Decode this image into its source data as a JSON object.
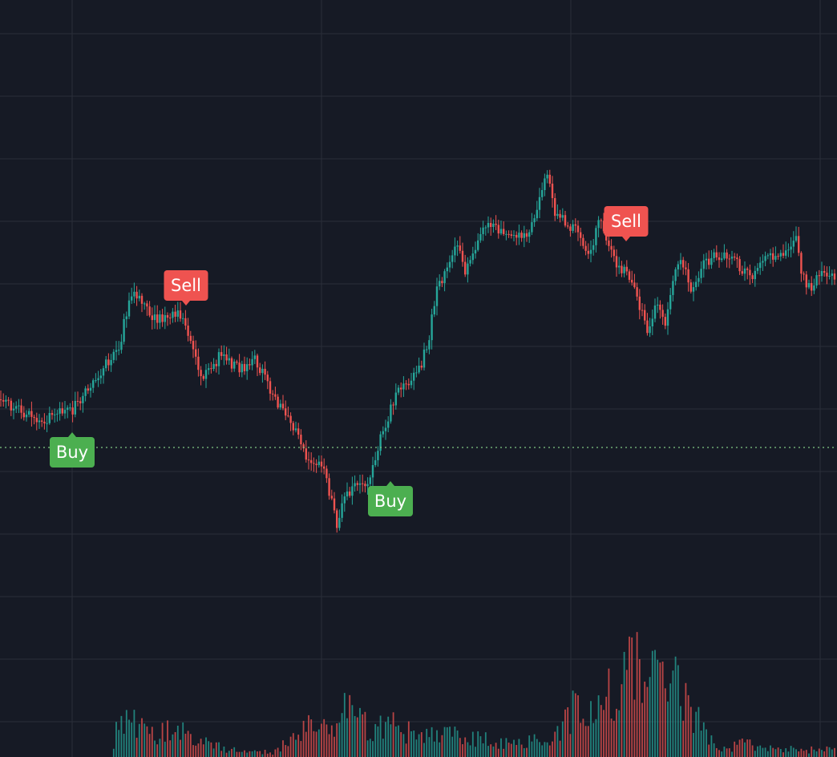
{
  "theme": {
    "background": "#161a25",
    "grid": "#2a2e39",
    "up": "#26a69a",
    "down": "#ef5350",
    "buy": "#4caf50",
    "sell": "#ef5350",
    "level_line": "#81c784",
    "signal_text": "#ffffff"
  },
  "chart_data": {
    "type": "candlestick",
    "grid": true,
    "price_axis_visible": false,
    "time_axis_visible": false,
    "ylim": [
      0,
      944
    ],
    "horizontal_level": 558,
    "signals": [
      {
        "label": "Buy",
        "side": "buy",
        "x": 90,
        "price": 514
      },
      {
        "label": "Sell",
        "side": "sell",
        "x": 232,
        "price": 398
      },
      {
        "label": "Buy",
        "side": "buy",
        "x": 487,
        "price": 575
      },
      {
        "label": "Sell",
        "side": "sell",
        "x": 781,
        "price": 318
      }
    ],
    "price_path": [
      [
        0,
        498
      ],
      [
        30,
        515
      ],
      [
        50,
        524
      ],
      [
        68,
        518
      ],
      [
        90,
        511
      ],
      [
        105,
        493
      ],
      [
        120,
        470
      ],
      [
        140,
        445
      ],
      [
        150,
        428
      ],
      [
        162,
        366
      ],
      [
        175,
        372
      ],
      [
        190,
        398
      ],
      [
        210,
        394
      ],
      [
        222,
        392
      ],
      [
        232,
        402
      ],
      [
        240,
        440
      ],
      [
        252,
        470
      ],
      [
        262,
        465
      ],
      [
        275,
        440
      ],
      [
        290,
        455
      ],
      [
        305,
        462
      ],
      [
        318,
        450
      ],
      [
        330,
        470
      ],
      [
        345,
        500
      ],
      [
        360,
        520
      ],
      [
        372,
        540
      ],
      [
        385,
        580
      ],
      [
        400,
        575
      ],
      [
        408,
        600
      ],
      [
        420,
        652
      ],
      [
        432,
        620
      ],
      [
        445,
        600
      ],
      [
        458,
        612
      ],
      [
        468,
        570
      ],
      [
        480,
        530
      ],
      [
        495,
        490
      ],
      [
        510,
        478
      ],
      [
        525,
        455
      ],
      [
        535,
        420
      ],
      [
        545,
        360
      ],
      [
        555,
        340
      ],
      [
        570,
        300
      ],
      [
        580,
        338
      ],
      [
        590,
        320
      ],
      [
        605,
        285
      ],
      [
        630,
        285
      ],
      [
        650,
        295
      ],
      [
        665,
        282
      ],
      [
        675,
        235
      ],
      [
        682,
        218
      ],
      [
        692,
        265
      ],
      [
        705,
        278
      ],
      [
        720,
        290
      ],
      [
        735,
        320
      ],
      [
        748,
        268
      ],
      [
        760,
        310
      ],
      [
        770,
        330
      ],
      [
        785,
        345
      ],
      [
        795,
        375
      ],
      [
        808,
        410
      ],
      [
        820,
        380
      ],
      [
        830,
        400
      ],
      [
        840,
        340
      ],
      [
        850,
        318
      ],
      [
        860,
        362
      ],
      [
        870,
        352
      ],
      [
        880,
        325
      ],
      [
        895,
        320
      ],
      [
        910,
        318
      ],
      [
        925,
        335
      ],
      [
        940,
        345
      ],
      [
        955,
        322
      ],
      [
        970,
        320
      ],
      [
        985,
        312
      ],
      [
        992,
        290
      ],
      [
        1000,
        340
      ],
      [
        1010,
        360
      ],
      [
        1020,
        340
      ],
      [
        1044,
        342
      ]
    ],
    "volume_profile": [
      [
        0,
        0
      ],
      [
        140,
        0
      ],
      [
        146,
        50
      ],
      [
        158,
        90
      ],
      [
        166,
        60
      ],
      [
        180,
        40
      ],
      [
        200,
        45
      ],
      [
        222,
        45
      ],
      [
        240,
        35
      ],
      [
        270,
        18
      ],
      [
        300,
        10
      ],
      [
        340,
        8
      ],
      [
        375,
        40
      ],
      [
        390,
        80
      ],
      [
        405,
        55
      ],
      [
        420,
        45
      ],
      [
        435,
        90
      ],
      [
        445,
        80
      ],
      [
        460,
        40
      ],
      [
        480,
        65
      ],
      [
        500,
        40
      ],
      [
        530,
        45
      ],
      [
        560,
        40
      ],
      [
        600,
        30
      ],
      [
        640,
        20
      ],
      [
        660,
        28
      ],
      [
        690,
        35
      ],
      [
        712,
        80
      ],
      [
        740,
        70
      ],
      [
        760,
        110
      ],
      [
        790,
        150
      ],
      [
        805,
        125
      ],
      [
        825,
        120
      ],
      [
        845,
        115
      ],
      [
        868,
        75
      ],
      [
        880,
        40
      ],
      [
        900,
        12
      ],
      [
        935,
        25
      ],
      [
        960,
        14
      ],
      [
        1000,
        12
      ],
      [
        1044,
        12
      ]
    ]
  }
}
